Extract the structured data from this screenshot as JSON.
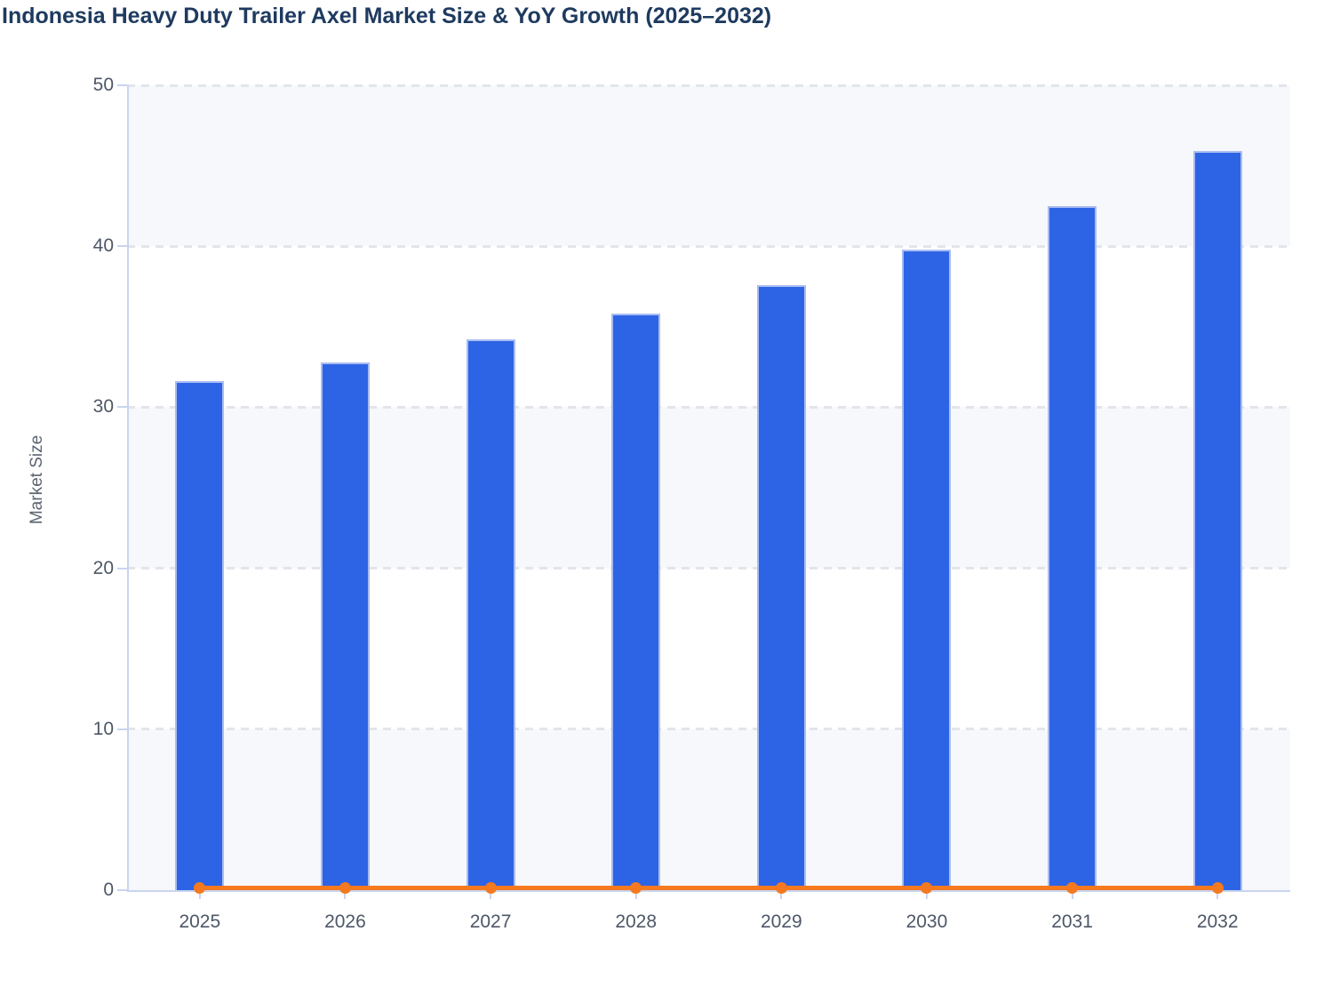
{
  "title": "Indonesia Heavy Duty Trailer Axel Market Size & YoY Growth (2025–2032)",
  "chart_data": {
    "type": "bar",
    "title": "Indonesia Heavy Duty Trailer Axel Market Size & YoY Growth (2025–2032)",
    "categories": [
      "2025",
      "2026",
      "2027",
      "2028",
      "2029",
      "2030",
      "2031",
      "2032"
    ],
    "series": [
      {
        "name": "Market Size",
        "type": "bar",
        "color": "#2d64e6",
        "values": [
          31.6,
          32.8,
          34.2,
          35.8,
          37.6,
          39.8,
          42.5,
          45.9
        ]
      },
      {
        "name": "YoY Growth",
        "type": "line",
        "color": "#f4791f",
        "values": [
          0.04,
          0.04,
          0.043,
          0.047,
          0.05,
          0.059,
          0.068,
          0.08
        ]
      }
    ],
    "xlabel": "",
    "ylabel": "Market Size",
    "ylim": [
      0,
      50
    ],
    "y_ticks": [
      0,
      10,
      20,
      30,
      40,
      50
    ],
    "grid": "horizontal-dashed",
    "legend_position": "none",
    "plot_background": "alternating horizontal bands"
  },
  "colors": {
    "bar": "#2d64e6",
    "bar_stroke": "#a9bcf1",
    "line": "#f4791f",
    "axis": "#c9d4f0",
    "gridline": "#e2e5ea",
    "band": "#f7f8fb",
    "title_text": "#1e3a5f",
    "tick_text": "#4d5767",
    "axis_label_text": "#5b6472"
  }
}
